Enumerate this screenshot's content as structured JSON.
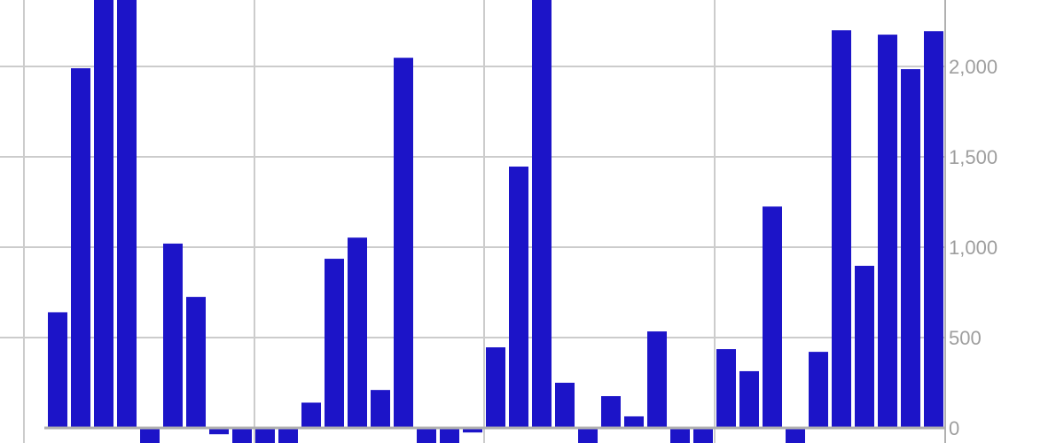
{
  "chart_data": {
    "type": "bar",
    "title": "",
    "xlabel": "",
    "ylabel": "",
    "y_axis_side": "right",
    "ylim": [
      -100,
      2370
    ],
    "yticks": [
      0,
      500,
      1000,
      1500,
      2000
    ],
    "ytick_labels": [
      "0",
      "500",
      "1,000",
      "1,500",
      "2,000"
    ],
    "grid": true,
    "bar_color": "#1c14c8",
    "grid_color": "#cccccc",
    "values": [
      640,
      1990,
      2600,
      2500,
      -150,
      1020,
      725,
      -35,
      -150,
      -150,
      -150,
      140,
      936,
      1053,
      210,
      2048,
      -150,
      -150,
      -25,
      446,
      1446,
      2600,
      250,
      -150,
      176,
      64,
      534,
      -150,
      -150,
      436,
      314,
      1225,
      -150,
      421,
      2200,
      897,
      2176,
      1985,
      2195
    ]
  }
}
